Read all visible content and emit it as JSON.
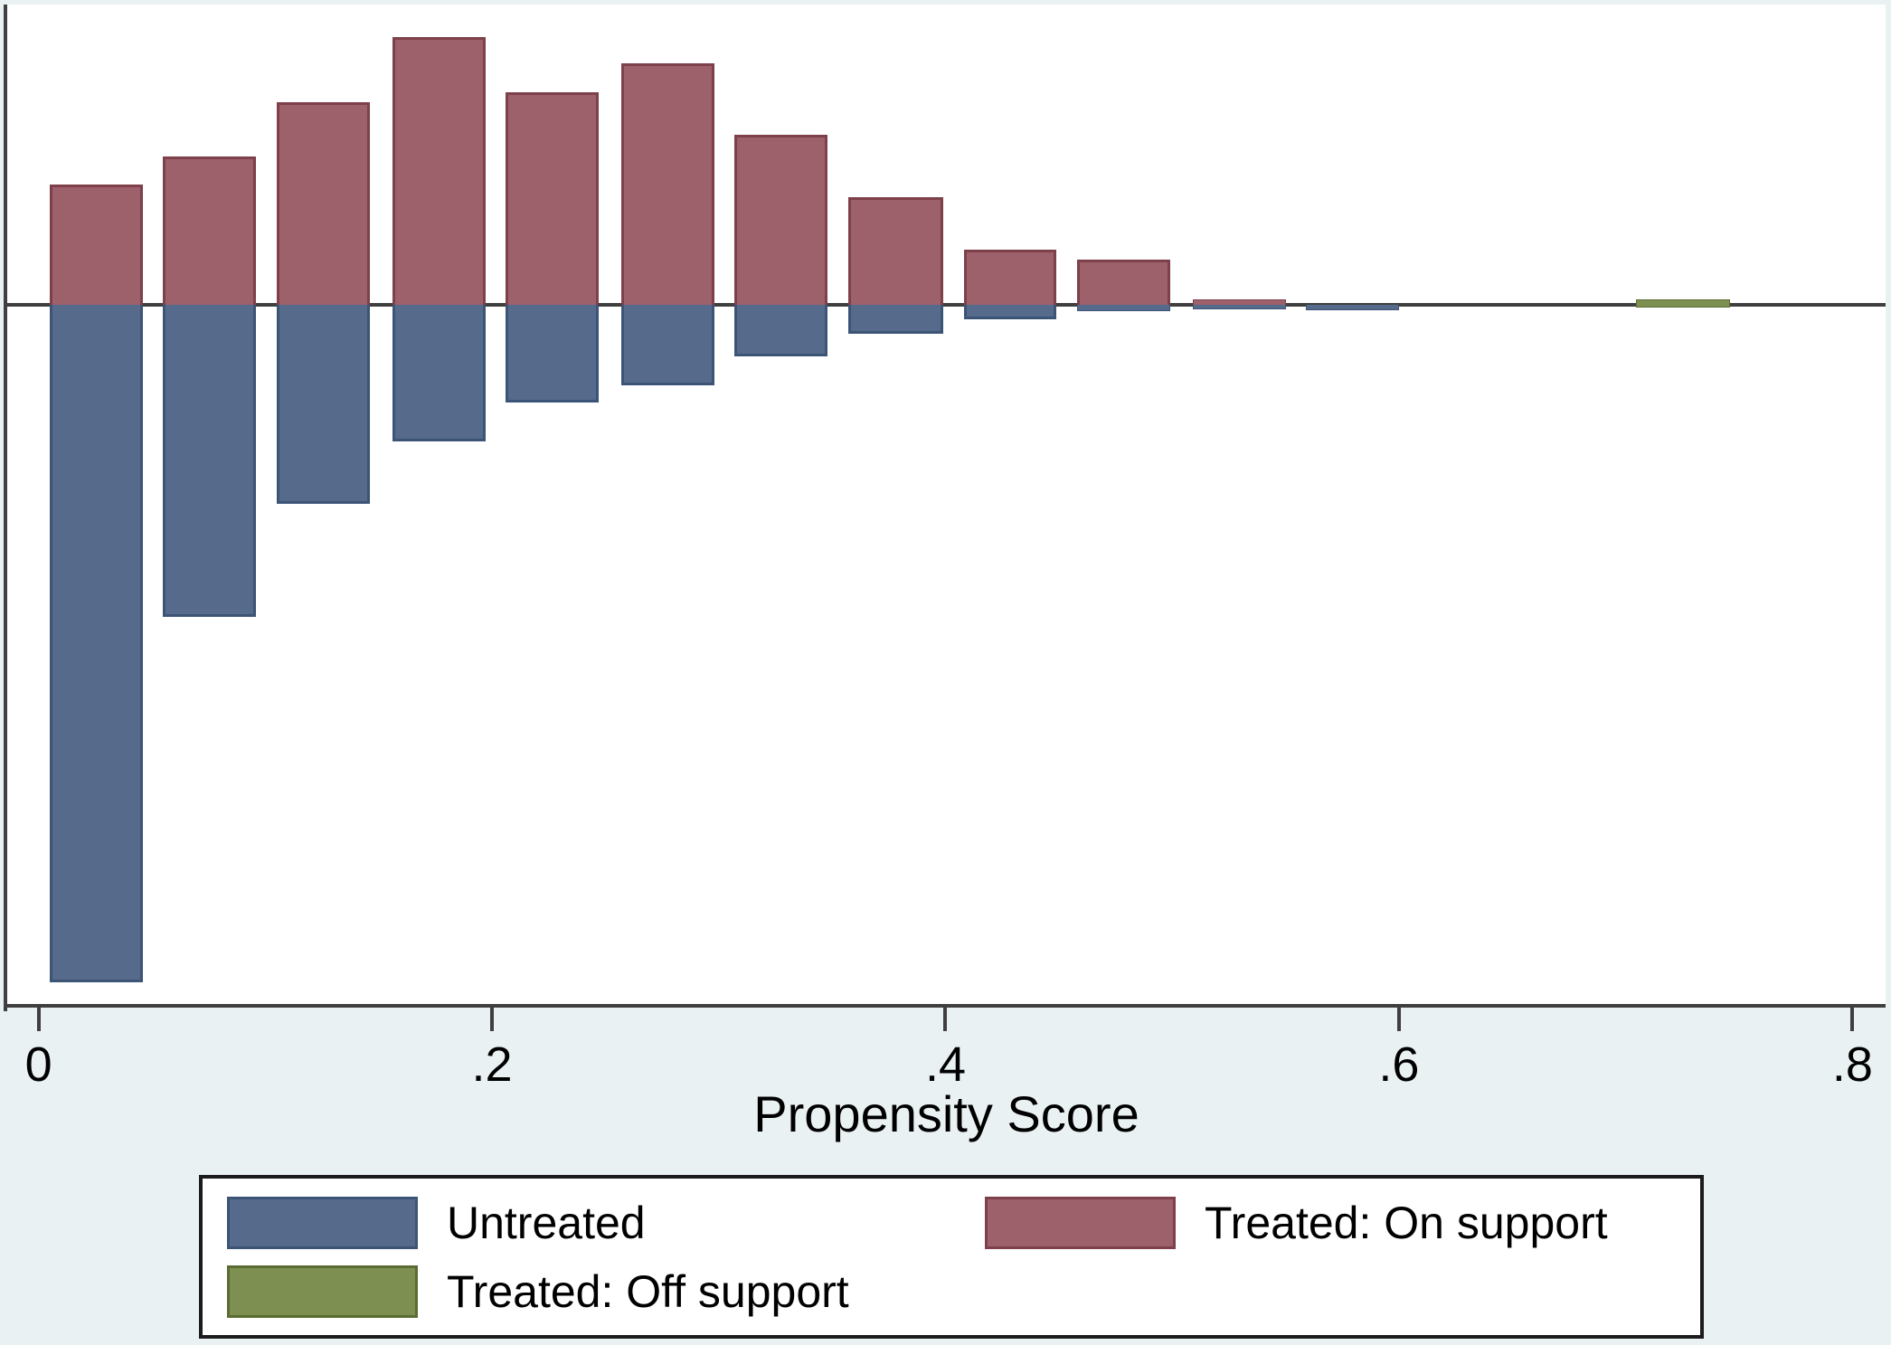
{
  "figure": {
    "background_color": "#eaf1f3",
    "plot_background": "#ffffff",
    "axis_color": "#3f3f3f",
    "text_color": "#000000"
  },
  "chart_data": {
    "type": "bar",
    "subtype": "mirrored-propensity-score-histogram",
    "title": "",
    "xlabel": "Propensity Score",
    "ylabel": "",
    "grid": false,
    "x_axis_range": [
      -0.0138,
      0.8146
    ],
    "x_ticks": [
      0,
      0.2,
      0.4,
      0.6,
      0.8
    ],
    "x_tick_labels": [
      "0",
      ".2",
      ".4",
      ".6",
      ".8"
    ],
    "y_axis_note": "no y ticks shown; heights are fractions of plot height",
    "baseline_fraction_from_top": 0.2994,
    "series": [
      {
        "key": "untreated",
        "name": "Untreated",
        "direction": "down",
        "fill": "#566b8c",
        "border": "#3c5476"
      },
      {
        "key": "treated_on",
        "name": "Treated: On support",
        "direction": "up",
        "fill": "#9c616a",
        "border": "#7e404b"
      },
      {
        "key": "treated_off",
        "name": "Treated: Off support",
        "direction": "up",
        "fill": "#7d9051",
        "border": "#5a6b33"
      }
    ],
    "bins": [
      {
        "x0": 0.005,
        "x1": 0.046,
        "treated_up": 0.12,
        "untreated_down": 0.675,
        "off_support": false
      },
      {
        "x0": 0.055,
        "x1": 0.096,
        "treated_up": 0.148,
        "untreated_down": 0.311,
        "off_support": false
      },
      {
        "x0": 0.105,
        "x1": 0.146,
        "treated_up": 0.202,
        "untreated_down": 0.198,
        "off_support": false
      },
      {
        "x0": 0.156,
        "x1": 0.197,
        "treated_up": 0.267,
        "untreated_down": 0.136,
        "off_support": false
      },
      {
        "x0": 0.206,
        "x1": 0.247,
        "treated_up": 0.212,
        "untreated_down": 0.097,
        "off_support": false
      },
      {
        "x0": 0.257,
        "x1": 0.298,
        "treated_up": 0.241,
        "untreated_down": 0.08,
        "off_support": false
      },
      {
        "x0": 0.307,
        "x1": 0.348,
        "treated_up": 0.17,
        "untreated_down": 0.051,
        "off_support": false
      },
      {
        "x0": 0.357,
        "x1": 0.399,
        "treated_up": 0.107,
        "untreated_down": 0.029,
        "off_support": false
      },
      {
        "x0": 0.408,
        "x1": 0.449,
        "treated_up": 0.055,
        "untreated_down": 0.014,
        "off_support": false
      },
      {
        "x0": 0.458,
        "x1": 0.499,
        "treated_up": 0.045,
        "untreated_down": 0.006,
        "off_support": false
      },
      {
        "x0": 0.509,
        "x1": 0.55,
        "treated_up": 0.005,
        "untreated_down": 0.0045,
        "off_support": false
      },
      {
        "x0": 0.559,
        "x1": 0.6,
        "treated_up": 0,
        "untreated_down": 0.0054,
        "off_support": false
      },
      {
        "x0": 0.7045,
        "x1": 0.746,
        "treated_up": 0.005,
        "untreated_down": 0.0027,
        "off_support": true
      }
    ],
    "legend_position": "bottom"
  },
  "legend": {
    "entries": [
      {
        "label": "Untreated",
        "series": "untreated"
      },
      {
        "label": "Treated: On support",
        "series": "treated_on"
      },
      {
        "label": "Treated: Off support",
        "series": "treated_off"
      }
    ]
  }
}
